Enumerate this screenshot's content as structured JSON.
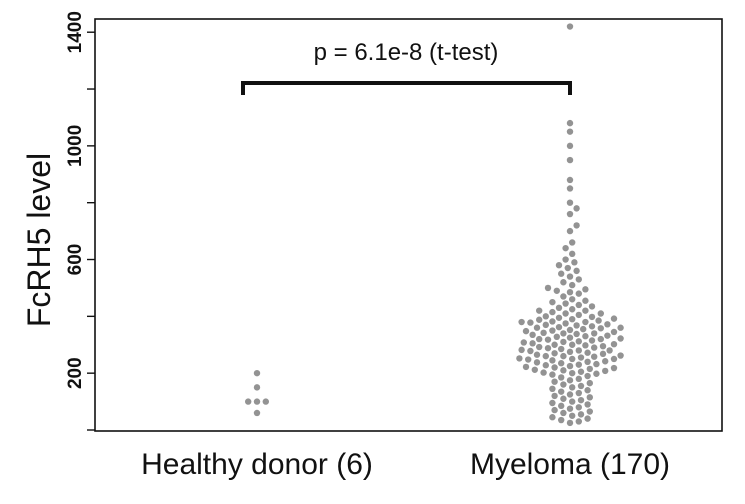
{
  "chart_data": {
    "type": "scatter",
    "ylabel": "FcRH5 level",
    "yticks": [
      200,
      600,
      1000,
      1400
    ],
    "ylim": [
      0,
      1450
    ],
    "grid": false,
    "annotation": "p = 6.1e-8 (t-test)",
    "categories": [
      "Healthy donor (6)",
      "Myeloma (170)"
    ],
    "colors": {
      "point": "#6f6f6f",
      "axis": "#111111"
    },
    "series": [
      {
        "category": "Healthy donor (6)",
        "values": [
          200,
          150,
          100,
          100,
          100,
          60
        ]
      },
      {
        "category": "Myeloma (170)",
        "values": [
          1420,
          1080,
          1050,
          1000,
          950,
          880,
          850,
          800,
          780,
          760,
          720,
          700,
          660,
          640,
          620,
          600,
          590,
          580,
          570,
          560,
          550,
          540,
          530,
          520,
          510,
          500,
          495,
          490,
          485,
          480,
          470,
          460,
          455,
          450,
          445,
          440,
          435,
          430,
          425,
          420,
          415,
          410,
          405,
          400,
          398,
          395,
          392,
          390,
          388,
          385,
          382,
          380,
          378,
          375,
          372,
          370,
          368,
          365,
          362,
          360,
          358,
          355,
          352,
          350,
          348,
          345,
          342,
          340,
          338,
          335,
          332,
          330,
          328,
          325,
          322,
          320,
          318,
          315,
          312,
          310,
          308,
          305,
          302,
          300,
          298,
          295,
          292,
          290,
          288,
          285,
          282,
          280,
          278,
          275,
          272,
          270,
          268,
          265,
          262,
          260,
          258,
          255,
          252,
          250,
          248,
          245,
          242,
          240,
          238,
          235,
          232,
          230,
          228,
          225,
          222,
          220,
          218,
          215,
          212,
          210,
          208,
          205,
          202,
          200,
          198,
          195,
          190,
          185,
          180,
          175,
          170,
          165,
          160,
          155,
          150,
          145,
          140,
          135,
          130,
          125,
          120,
          115,
          110,
          105,
          100,
          95,
          90,
          85,
          80,
          75,
          70,
          65,
          60,
          55,
          50,
          45,
          40,
          35,
          30,
          25,
          420,
          410,
          380,
          360,
          340,
          320,
          300,
          280,
          260,
          250
        ]
      }
    ]
  }
}
